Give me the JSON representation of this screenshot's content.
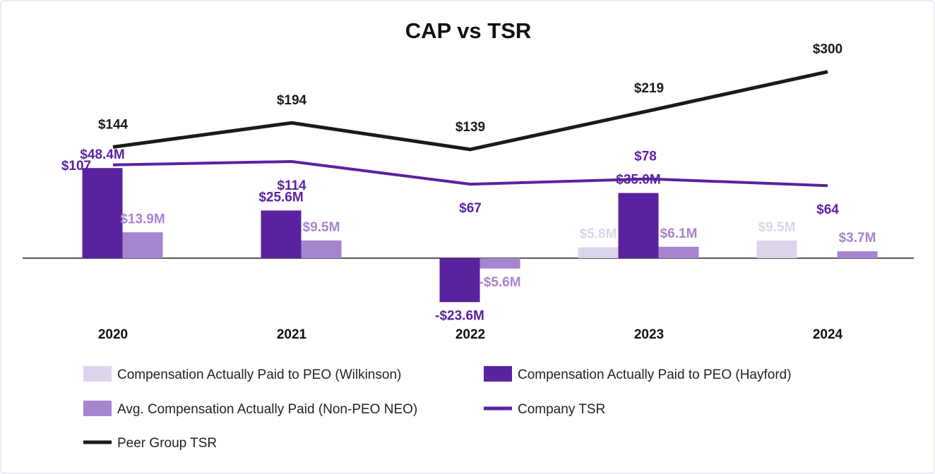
{
  "chart_data": {
    "type": "bar",
    "title": "CAP vs TSR",
    "categories": [
      "2020",
      "2021",
      "2022",
      "2023",
      "2024"
    ],
    "series": [
      {
        "name": "Compensation Actually Paid to PEO (Wilkinson)",
        "kind": "bar",
        "unit": "$M",
        "color": "#ddd4ec",
        "values": [
          null,
          null,
          null,
          5.8,
          9.5
        ],
        "labels": [
          "",
          "",
          "",
          "$5.8M",
          "$9.5M"
        ]
      },
      {
        "name": "Compensation Actually Paid to PEO (Hayford)",
        "kind": "bar",
        "unit": "$M",
        "color": "#5b22a0",
        "values": [
          48.4,
          25.6,
          -23.6,
          35.0,
          null
        ],
        "labels": [
          "$48.4M",
          "$25.6M",
          "-$23.6M",
          "$35.0M",
          ""
        ]
      },
      {
        "name": "Avg. Compensation Actually Paid (Non-PEO NEO)",
        "kind": "bar",
        "unit": "$M",
        "color": "#a585cf",
        "values": [
          13.9,
          9.5,
          -5.6,
          6.1,
          3.7
        ],
        "labels": [
          "$13.9M",
          "$9.5M",
          "-$5.6M",
          "$6.1M",
          "$3.7M"
        ]
      },
      {
        "name": "Company TSR",
        "kind": "line",
        "color": "#5b22a0",
        "values": [
          107,
          114,
          67,
          78,
          64
        ],
        "labels": [
          "$107",
          "$114",
          "$67",
          "$78",
          "$64"
        ]
      },
      {
        "name": "Peer Group TSR",
        "kind": "line",
        "color": "#1a1a1a",
        "values": [
          144,
          194,
          139,
          219,
          300
        ],
        "labels": [
          "$144",
          "$194",
          "$139",
          "$219",
          "$300"
        ]
      }
    ],
    "bar_ylim": [
      -25,
      50
    ],
    "line_ylim": [
      0,
      320
    ],
    "grid": false,
    "legend": "bottom"
  }
}
